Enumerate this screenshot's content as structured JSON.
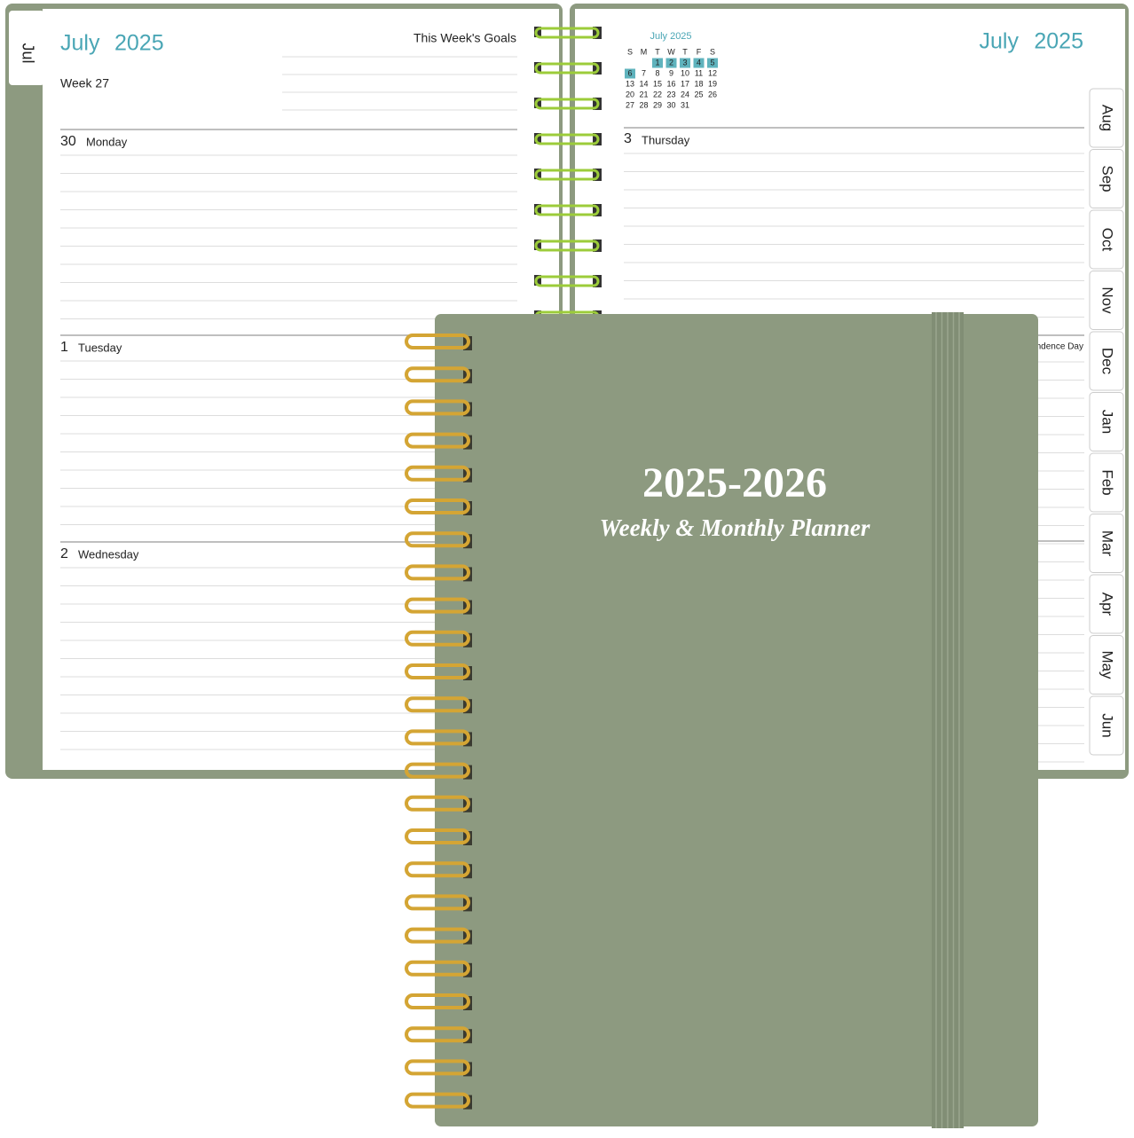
{
  "left_page": {
    "tab": "Jul",
    "month": "July",
    "year": "2025",
    "goals_label": "This Week's Goals",
    "week": "Week 27",
    "days": [
      {
        "date": "30",
        "name": "Monday"
      },
      {
        "date": "1",
        "name": "Tuesday"
      },
      {
        "date": "2",
        "name": "Wednesday"
      }
    ]
  },
  "right_page": {
    "month": "July",
    "year": "2025",
    "days": [
      {
        "date": "3",
        "name": "Thursday"
      }
    ],
    "holiday": "ndence Day",
    "mini_calendar": {
      "title": "July 2025",
      "weekdays": [
        "S",
        "M",
        "T",
        "W",
        "T",
        "F",
        "S"
      ],
      "weeks": [
        [
          null,
          null,
          "1",
          "2",
          "3",
          "4",
          "5"
        ],
        [
          "6",
          "7",
          "8",
          "9",
          "10",
          "11",
          "12"
        ],
        [
          "13",
          "14",
          "15",
          "16",
          "17",
          "18",
          "19"
        ],
        [
          "20",
          "21",
          "22",
          "23",
          "24",
          "25",
          "26"
        ],
        [
          "27",
          "28",
          "29",
          "30",
          "31",
          null,
          null
        ]
      ]
    },
    "tabs": [
      "Aug",
      "Sep",
      "Oct",
      "Nov",
      "Dec",
      "Jan",
      "Feb",
      "Mar",
      "Apr",
      "May",
      "Jun"
    ]
  },
  "cover": {
    "title": "2025-2026",
    "subtitle": "Weekly & Monthly Planner"
  }
}
